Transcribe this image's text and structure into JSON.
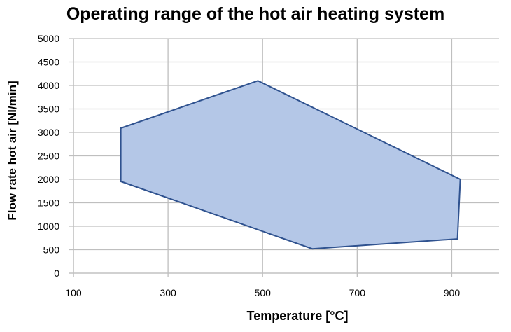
{
  "chart_data": {
    "type": "area",
    "title": "Operating range of the hot air heating system",
    "xlabel": "Temperature [°C]",
    "ylabel": "Flow rate hot air [Nl/min]",
    "xlim": [
      100,
      1000
    ],
    "ylim": [
      0,
      5000
    ],
    "x_ticks": [
      100,
      300,
      500,
      700,
      900
    ],
    "y_ticks": [
      0,
      500,
      1000,
      1500,
      2000,
      2500,
      3000,
      3500,
      4000,
      4500,
      5000
    ],
    "grid": true,
    "legend": "none",
    "series": [
      {
        "name": "Operating range",
        "fill_color": "#b4c7e7",
        "line_color": "#2f528f",
        "points": [
          {
            "x": 200,
            "y": 3090
          },
          {
            "x": 490,
            "y": 4100
          },
          {
            "x": 918,
            "y": 2000
          },
          {
            "x": 912,
            "y": 730
          },
          {
            "x": 605,
            "y": 520
          },
          {
            "x": 200,
            "y": 1955
          }
        ]
      }
    ]
  }
}
